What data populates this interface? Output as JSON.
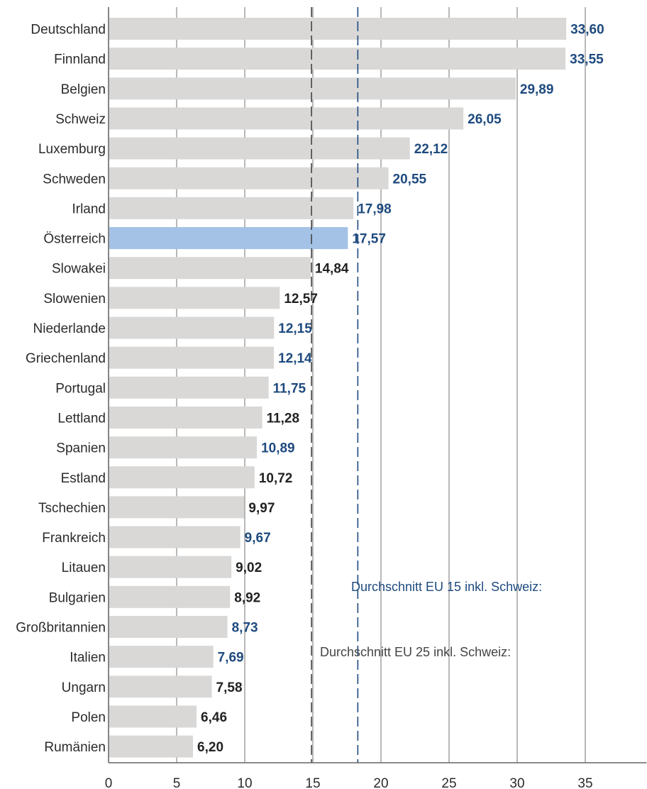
{
  "chart_data": {
    "type": "bar",
    "orientation": "horizontal",
    "categories": [
      "Deutschland",
      "Finnland",
      "Belgien",
      "Schweiz",
      "Luxemburg",
      "Schweden",
      "Irland",
      "Österreich",
      "Slowakei",
      "Slowenien",
      "Niederlande",
      "Griechenland",
      "Portugal",
      "Lettland",
      "Spanien",
      "Estland",
      "Tschechien",
      "Frankreich",
      "Litauen",
      "Bulgarien",
      "Großbritannien",
      "Italien",
      "Ungarn",
      "Polen",
      "Rumänien"
    ],
    "values": [
      33.6,
      33.55,
      29.89,
      26.05,
      22.12,
      20.55,
      17.98,
      17.57,
      14.84,
      12.57,
      12.15,
      12.14,
      11.75,
      11.28,
      10.89,
      10.72,
      9.97,
      9.67,
      9.02,
      8.92,
      8.73,
      7.69,
      7.58,
      6.46,
      6.2
    ],
    "value_labels": [
      "33,60",
      "33,55",
      "29,89",
      "26,05",
      "22,12",
      "20,55",
      "17,98",
      "17,57",
      "14,84",
      "12,57",
      "12,15",
      "12,14",
      "11,75",
      "11,28",
      "10,89",
      "10,72",
      "9,97",
      "9,67",
      "9,02",
      "8,92",
      "8,73",
      "7,69",
      "7,58",
      "6,46",
      "6,20"
    ],
    "eu15_members": [
      true,
      true,
      true,
      true,
      true,
      true,
      true,
      true,
      false,
      false,
      true,
      true,
      true,
      false,
      true,
      false,
      false,
      true,
      false,
      false,
      true,
      true,
      false,
      false,
      false
    ],
    "highlight": "Österreich",
    "xlim": [
      0,
      39.5
    ],
    "xticks": [
      0,
      5,
      10,
      15,
      20,
      25,
      30,
      35
    ],
    "grid": true,
    "xlabel": "",
    "ylabel": "",
    "title": "",
    "reference_lines": [
      {
        "name": "Durchschnitt EU 15 inkl. Schweiz:",
        "value": 18.3,
        "style": "dashed",
        "color": "#1e4a7e"
      },
      {
        "name": "Durchschnitt EU 25 inkl. Schweiz:",
        "value": 14.9,
        "style": "dashed",
        "color": "#444444"
      }
    ]
  },
  "colors": {
    "bar": "#d9d8d7",
    "bar_highlight": "#a4c2e6",
    "eu15_label": "#1e4a7e",
    "other_label": "#222222",
    "grid": "#888888",
    "eu25_note": "#444444"
  }
}
